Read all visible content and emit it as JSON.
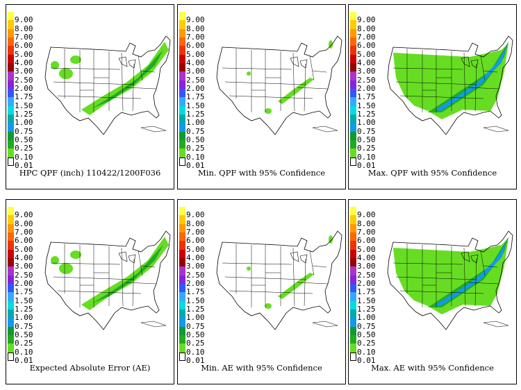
{
  "legend": {
    "labels": [
      "9.00",
      "8.00",
      "7.00",
      "6.00",
      "5.00",
      "4.00",
      "3.00",
      "2.50",
      "2.00",
      "1.75",
      "1.50",
      "1.25",
      "1.00",
      "0.75",
      "0.50",
      "0.25",
      "0.10",
      "0.01"
    ],
    "colors": [
      "#ffff44",
      "#ffcc00",
      "#ff9900",
      "#ff6600",
      "#ee3300",
      "#cc0000",
      "#990000",
      "#aa33cc",
      "#8822dd",
      "#3355ff",
      "#33aaff",
      "#00dddd",
      "#00aaaa",
      "#1199ee",
      "#119933",
      "#22aa22",
      "#66dd22",
      "#ffffff"
    ]
  },
  "panels": [
    {
      "caption": "HPC QPF (inch) 110422/1200F036",
      "coverage": "medium"
    },
    {
      "caption": "Min. QPF with 95% Confidence",
      "coverage": "low"
    },
    {
      "caption": "Max. QPF with 95% Confidence",
      "coverage": "high"
    },
    {
      "caption": "Expected Absolute Error (AE)",
      "coverage": "medium"
    },
    {
      "caption": "Min. AE with 95% Confidence",
      "coverage": "low"
    },
    {
      "caption": "Max. AE with 95% Confidence",
      "coverage": "high"
    }
  ]
}
